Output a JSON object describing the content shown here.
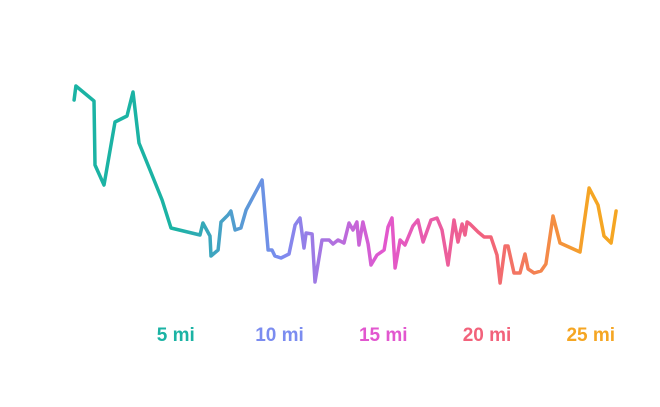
{
  "chart_data": {
    "type": "line",
    "x": [
      0.1,
      0.19,
      1.06,
      1.11,
      1.54,
      2.07,
      2.65,
      2.94,
      3.23,
      3.76,
      4.34,
      4.77,
      6.17,
      6.31,
      6.65,
      6.7,
      7.04,
      7.18,
      7.52,
      7.66,
      7.86,
      8.14,
      8.39,
      9.16,
      9.45,
      9.64,
      9.78,
      10.07,
      10.46,
      10.75,
      10.99,
      11.18,
      11.28,
      11.57,
      11.71,
      12.05,
      12.39,
      12.58,
      12.82,
      13.11,
      13.35,
      13.54,
      13.73,
      13.83,
      14.02,
      14.17,
      14.27,
      14.41,
      14.7,
      15.04,
      15.23,
      15.42,
      15.57,
      15.81,
      16.05,
      16.43,
      16.67,
      16.92,
      17.3,
      17.59,
      17.83,
      18.12,
      18.41,
      18.6,
      18.8,
      18.94,
      19.04,
      19.18,
      19.57,
      19.86,
      20.19,
      20.48,
      20.63,
      20.87,
      21.01,
      21.3,
      21.59,
      21.83,
      21.98,
      22.27,
      22.6,
      22.84,
      23.18,
      23.52,
      24.48,
      24.92,
      25.35,
      25.64,
      25.98,
      26.22
    ],
    "values": [
      200,
      214,
      199,
      135,
      115,
      178,
      184,
      208,
      157,
      130,
      100,
      72,
      65,
      77,
      64,
      44,
      50,
      78,
      85,
      89,
      70,
      72,
      90,
      120,
      50,
      50,
      44,
      42,
      46,
      75,
      82,
      52,
      67,
      66,
      18,
      60,
      60,
      56,
      60,
      57,
      77,
      70,
      78,
      55,
      78,
      65,
      56,
      35,
      45,
      50,
      73,
      82,
      32,
      60,
      55,
      74,
      80,
      58,
      80,
      82,
      70,
      35,
      80,
      58,
      76,
      65,
      78,
      76,
      68,
      63,
      63,
      45,
      17,
      54,
      54,
      27,
      27,
      46,
      31,
      27,
      29,
      36,
      84,
      57,
      48,
      112,
      95,
      64,
      57,
      89
    ],
    "xlim": [
      0,
      28
    ],
    "ylim": [
      0,
      240
    ],
    "xticks": [
      {
        "value": 5,
        "label": "5 mi"
      },
      {
        "value": 10,
        "label": "10 mi"
      },
      {
        "value": 15,
        "label": "15 mi"
      },
      {
        "value": 20,
        "label": "20 mi"
      },
      {
        "value": 25,
        "label": "25 mi"
      }
    ],
    "xtick_colors": [
      "#1bb3a4",
      "#7b8cf0",
      "#e257cf",
      "#f2627b",
      "#f5a623"
    ]
  }
}
